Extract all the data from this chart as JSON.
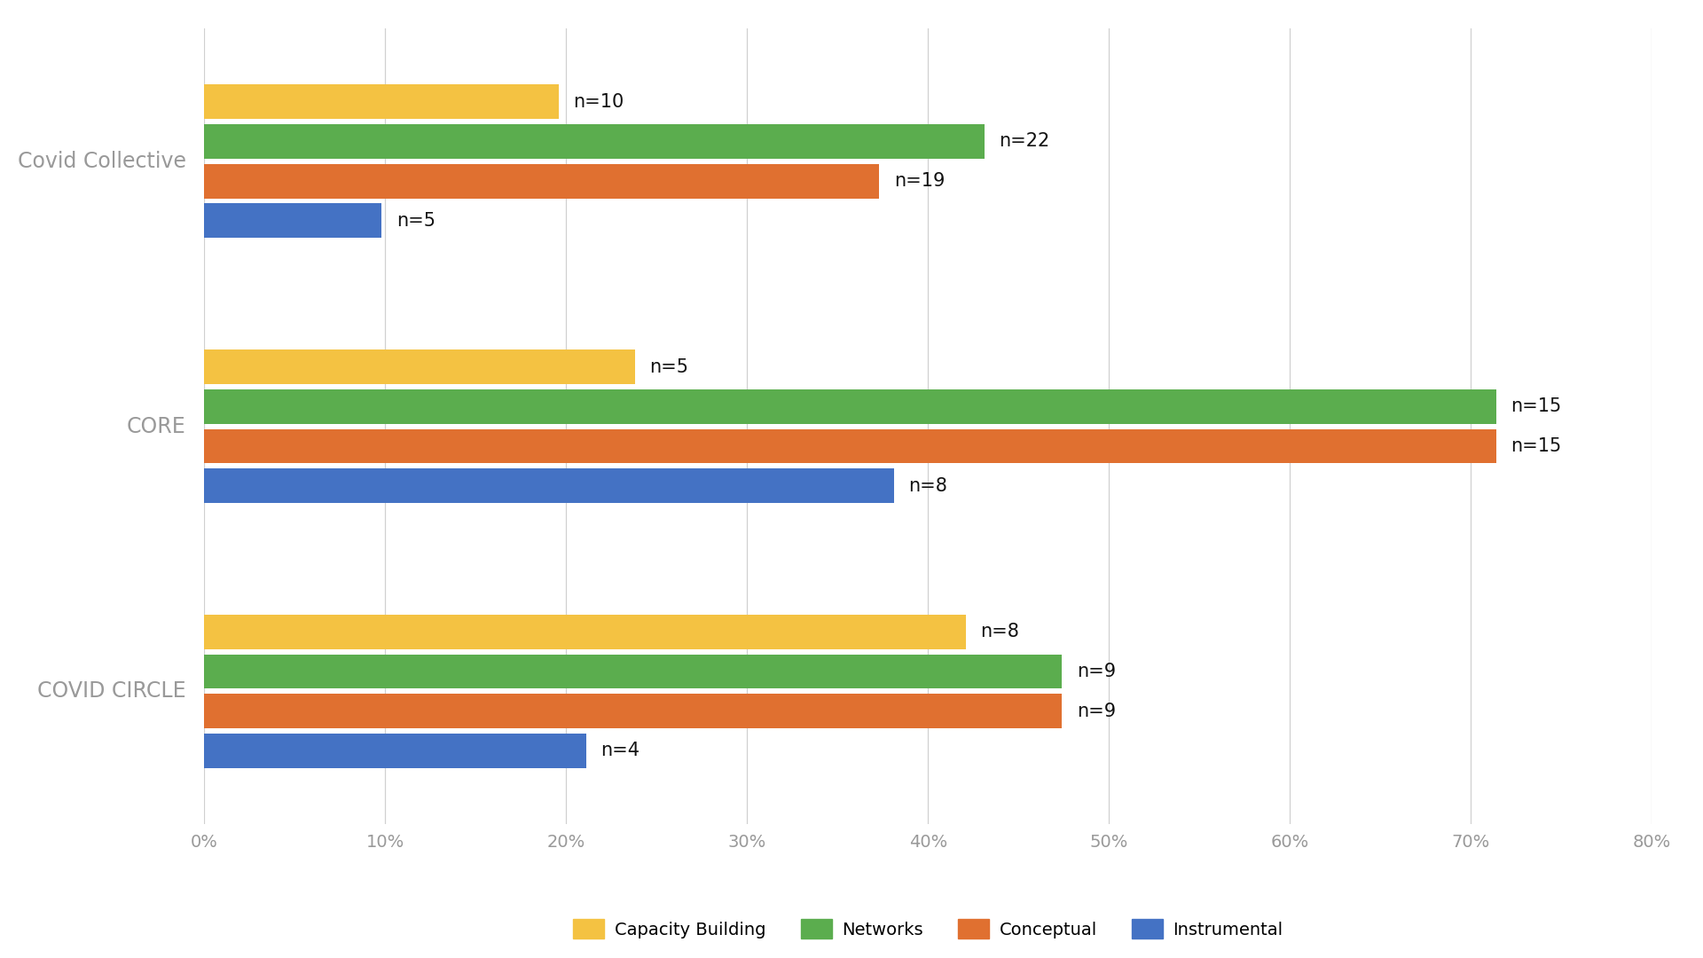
{
  "projects": [
    "Covid Collective",
    "CORE",
    "COVID CIRCLE"
  ],
  "categories": [
    "Capacity Building",
    "Networks",
    "Conceptual",
    "Instrumental"
  ],
  "colors": [
    "#F4C242",
    "#5BAD4E",
    "#E07030",
    "#4472C4"
  ],
  "values": {
    "Covid Collective": [
      19.6,
      43.1,
      37.3,
      9.8
    ],
    "CORE": [
      23.8,
      71.4,
      71.4,
      38.1
    ],
    "COVID CIRCLE": [
      42.1,
      47.4,
      47.4,
      21.1
    ]
  },
  "n_labels": {
    "Covid Collective": [
      "n=10",
      "n=22",
      "n=19",
      "n=5"
    ],
    "CORE": [
      "n=5",
      "n=15",
      "n=15",
      "n=8"
    ],
    "COVID CIRCLE": [
      "n=8",
      "n=9",
      "n=9",
      "n=4"
    ]
  },
  "xlim": [
    0,
    80
  ],
  "xticks": [
    0,
    10,
    20,
    30,
    40,
    50,
    60,
    70,
    80
  ],
  "xtick_labels": [
    "0%",
    "10%",
    "20%",
    "30%",
    "40%",
    "50%",
    "60%",
    "70%",
    "80%"
  ],
  "background_color": "#FFFFFF",
  "bar_height": 0.13,
  "font_family": "DejaVu Sans",
  "label_fontsize": 15,
  "tick_fontsize": 14,
  "legend_fontsize": 14,
  "ytick_fontsize": 17,
  "grid_color": "#D0D0D0",
  "label_color": "#111111",
  "ytick_color": "#999999"
}
